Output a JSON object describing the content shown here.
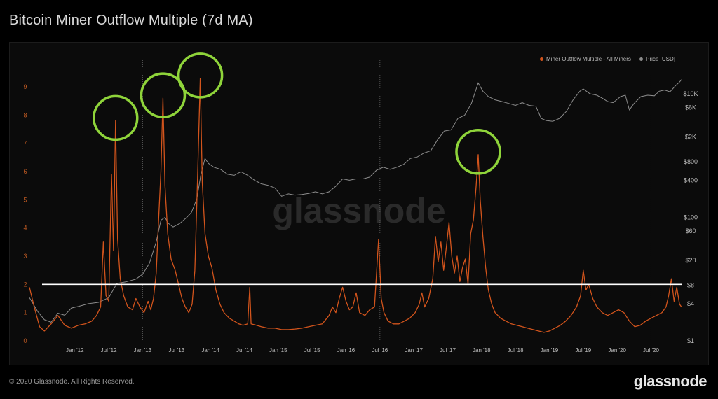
{
  "page": {
    "title": "Bitcoin Miner Outflow Multiple (7d MA)",
    "copyright": "© 2020 Glassnode. All Rights Reserved.",
    "brand": "glassnode",
    "watermark": "glassnode"
  },
  "colors": {
    "mom": "#d2541c",
    "price": "#8c8c8c",
    "threshold": "#ffffff",
    "highlight": "#8fd43a",
    "axis": "#c05a22"
  },
  "chart_data": {
    "type": "line",
    "title": "Bitcoin Miner Outflow Multiple (7d MA)",
    "legend": {
      "placement": "top-right",
      "items": [
        "Miner Outflow Multiple - All Miners",
        "Price [USD]"
      ]
    },
    "x_ticks": [
      "Jan '12",
      "Jul '12",
      "Jan '13",
      "Jul '13",
      "Jan '14",
      "Jul '14",
      "Jan '15",
      "Jul '15",
      "Jan '16",
      "Jul '16",
      "Jan '17",
      "Jul '17",
      "Jan '18",
      "Jul '18",
      "Jan '19",
      "Jul '19",
      "Jan '20",
      "Jul '20"
    ],
    "y_left": {
      "label": "Miner Outflow Multiple",
      "ticks": [
        0,
        1,
        2,
        3,
        4,
        5,
        6,
        7,
        8,
        9
      ],
      "range": [
        0,
        9.5
      ]
    },
    "y_right": {
      "label": "Price [USD]",
      "scale": "log",
      "ticks": [
        "$1",
        "$4",
        "$8",
        "$20",
        "$60",
        "$100",
        "$400",
        "$800",
        "$2K",
        "$6K",
        "$10K"
      ],
      "tick_values": [
        1,
        4,
        8,
        20,
        60,
        100,
        400,
        800,
        2000,
        6000,
        10000
      ],
      "range": [
        1,
        20000
      ]
    },
    "threshold": 2,
    "highlighted_peaks": [
      {
        "date": "2012.6",
        "value": 7.8
      },
      {
        "date": "2013.3",
        "value": 8.6
      },
      {
        "date": "2013.85",
        "value": 9.3
      },
      {
        "date": "2017.95",
        "value": 6.6
      }
    ],
    "series": [
      {
        "name": "Miner Outflow Multiple - All Miners",
        "axis": "left",
        "points": [
          [
            2011.33,
            1.9
          ],
          [
            2011.4,
            1.2
          ],
          [
            2011.48,
            0.5
          ],
          [
            2011.55,
            0.35
          ],
          [
            2011.65,
            0.6
          ],
          [
            2011.75,
            0.9
          ],
          [
            2011.85,
            0.55
          ],
          [
            2011.95,
            0.45
          ],
          [
            2012.05,
            0.55
          ],
          [
            2012.15,
            0.6
          ],
          [
            2012.25,
            0.7
          ],
          [
            2012.32,
            0.9
          ],
          [
            2012.38,
            1.2
          ],
          [
            2012.42,
            3.5
          ],
          [
            2012.46,
            1.6
          ],
          [
            2012.5,
            1.4
          ],
          [
            2012.54,
            5.9
          ],
          [
            2012.57,
            3.2
          ],
          [
            2012.6,
            7.8
          ],
          [
            2012.63,
            3.6
          ],
          [
            2012.67,
            2.2
          ],
          [
            2012.72,
            1.6
          ],
          [
            2012.78,
            1.2
          ],
          [
            2012.85,
            1.1
          ],
          [
            2012.9,
            1.5
          ],
          [
            2012.96,
            1.2
          ],
          [
            2013.02,
            1.0
          ],
          [
            2013.08,
            1.4
          ],
          [
            2013.12,
            1.1
          ],
          [
            2013.16,
            1.5
          ],
          [
            2013.2,
            2.4
          ],
          [
            2013.24,
            4.5
          ],
          [
            2013.27,
            6.0
          ],
          [
            2013.3,
            8.6
          ],
          [
            2013.33,
            5.5
          ],
          [
            2013.37,
            3.8
          ],
          [
            2013.42,
            2.9
          ],
          [
            2013.48,
            2.5
          ],
          [
            2013.53,
            2.0
          ],
          [
            2013.58,
            1.5
          ],
          [
            2013.63,
            1.2
          ],
          [
            2013.68,
            1.0
          ],
          [
            2013.73,
            1.3
          ],
          [
            2013.77,
            2.5
          ],
          [
            2013.81,
            5.8
          ],
          [
            2013.85,
            9.3
          ],
          [
            2013.88,
            5.6
          ],
          [
            2013.92,
            3.8
          ],
          [
            2013.97,
            3.0
          ],
          [
            2014.02,
            2.6
          ],
          [
            2014.08,
            1.8
          ],
          [
            2014.14,
            1.3
          ],
          [
            2014.2,
            1.0
          ],
          [
            2014.28,
            0.8
          ],
          [
            2014.35,
            0.7
          ],
          [
            2014.42,
            0.6
          ],
          [
            2014.48,
            0.55
          ],
          [
            2014.55,
            0.6
          ],
          [
            2014.58,
            1.9
          ],
          [
            2014.6,
            0.6
          ],
          [
            2014.68,
            0.55
          ],
          [
            2014.75,
            0.5
          ],
          [
            2014.85,
            0.45
          ],
          [
            2014.95,
            0.45
          ],
          [
            2015.05,
            0.4
          ],
          [
            2015.15,
            0.4
          ],
          [
            2015.25,
            0.42
          ],
          [
            2015.35,
            0.45
          ],
          [
            2015.45,
            0.5
          ],
          [
            2015.55,
            0.55
          ],
          [
            2015.65,
            0.6
          ],
          [
            2015.75,
            0.9
          ],
          [
            2015.8,
            1.2
          ],
          [
            2015.85,
            1.0
          ],
          [
            2015.9,
            1.5
          ],
          [
            2015.95,
            1.9
          ],
          [
            2016.0,
            1.4
          ],
          [
            2016.05,
            1.1
          ],
          [
            2016.1,
            1.2
          ],
          [
            2016.15,
            1.7
          ],
          [
            2016.2,
            1.0
          ],
          [
            2016.28,
            0.9
          ],
          [
            2016.35,
            1.1
          ],
          [
            2016.42,
            1.2
          ],
          [
            2016.48,
            3.6
          ],
          [
            2016.52,
            1.5
          ],
          [
            2016.56,
            1.0
          ],
          [
            2016.62,
            0.7
          ],
          [
            2016.7,
            0.6
          ],
          [
            2016.78,
            0.6
          ],
          [
            2016.86,
            0.7
          ],
          [
            2016.94,
            0.8
          ],
          [
            2017.02,
            1.0
          ],
          [
            2017.08,
            1.3
          ],
          [
            2017.12,
            1.7
          ],
          [
            2017.16,
            1.2
          ],
          [
            2017.22,
            1.5
          ],
          [
            2017.28,
            2.2
          ],
          [
            2017.32,
            3.7
          ],
          [
            2017.36,
            2.8
          ],
          [
            2017.4,
            3.5
          ],
          [
            2017.44,
            2.5
          ],
          [
            2017.48,
            3.3
          ],
          [
            2017.52,
            4.2
          ],
          [
            2017.56,
            3.0
          ],
          [
            2017.6,
            2.4
          ],
          [
            2017.64,
            3.0
          ],
          [
            2017.68,
            2.1
          ],
          [
            2017.72,
            2.6
          ],
          [
            2017.76,
            2.9
          ],
          [
            2017.8,
            2.0
          ],
          [
            2017.84,
            3.8
          ],
          [
            2017.88,
            4.3
          ],
          [
            2017.92,
            5.5
          ],
          [
            2017.95,
            6.6
          ],
          [
            2017.98,
            5.0
          ],
          [
            2018.02,
            3.7
          ],
          [
            2018.06,
            2.6
          ],
          [
            2018.1,
            1.8
          ],
          [
            2018.15,
            1.3
          ],
          [
            2018.2,
            1.0
          ],
          [
            2018.28,
            0.8
          ],
          [
            2018.36,
            0.7
          ],
          [
            2018.44,
            0.6
          ],
          [
            2018.52,
            0.55
          ],
          [
            2018.6,
            0.5
          ],
          [
            2018.68,
            0.45
          ],
          [
            2018.76,
            0.4
          ],
          [
            2018.84,
            0.35
          ],
          [
            2018.92,
            0.3
          ],
          [
            2019.0,
            0.35
          ],
          [
            2019.08,
            0.45
          ],
          [
            2019.16,
            0.55
          ],
          [
            2019.24,
            0.7
          ],
          [
            2019.32,
            0.9
          ],
          [
            2019.4,
            1.2
          ],
          [
            2019.46,
            1.6
          ],
          [
            2019.5,
            2.5
          ],
          [
            2019.54,
            1.8
          ],
          [
            2019.58,
            2.0
          ],
          [
            2019.64,
            1.5
          ],
          [
            2019.7,
            1.2
          ],
          [
            2019.78,
            1.0
          ],
          [
            2019.86,
            0.9
          ],
          [
            2019.94,
            1.0
          ],
          [
            2020.02,
            1.1
          ],
          [
            2020.1,
            1.0
          ],
          [
            2020.18,
            0.7
          ],
          [
            2020.26,
            0.5
          ],
          [
            2020.34,
            0.55
          ],
          [
            2020.42,
            0.7
          ],
          [
            2020.5,
            0.8
          ],
          [
            2020.58,
            0.9
          ],
          [
            2020.66,
            1.0
          ],
          [
            2020.72,
            1.2
          ],
          [
            2020.76,
            1.6
          ],
          [
            2020.8,
            2.2
          ],
          [
            2020.84,
            1.4
          ],
          [
            2020.88,
            1.9
          ],
          [
            2020.92,
            1.3
          ],
          [
            2020.95,
            1.2
          ]
        ]
      },
      {
        "name": "Price [USD]",
        "axis": "right",
        "points": [
          [
            2011.33,
            5
          ],
          [
            2011.45,
            3
          ],
          [
            2011.55,
            2.2
          ],
          [
            2011.65,
            2.0
          ],
          [
            2011.75,
            2.8
          ],
          [
            2011.85,
            2.6
          ],
          [
            2011.95,
            3.4
          ],
          [
            2012.05,
            3.6
          ],
          [
            2012.2,
            4.0
          ],
          [
            2012.35,
            4.2
          ],
          [
            2012.5,
            5.0
          ],
          [
            2012.62,
            8.5
          ],
          [
            2012.75,
            9.0
          ],
          [
            2012.9,
            10
          ],
          [
            2013.0,
            12
          ],
          [
            2013.1,
            18
          ],
          [
            2013.2,
            40
          ],
          [
            2013.27,
            90
          ],
          [
            2013.33,
            100
          ],
          [
            2013.38,
            80
          ],
          [
            2013.45,
            70
          ],
          [
            2013.55,
            80
          ],
          [
            2013.65,
            100
          ],
          [
            2013.72,
            120
          ],
          [
            2013.8,
            200
          ],
          [
            2013.86,
            500
          ],
          [
            2013.92,
            900
          ],
          [
            2013.97,
            750
          ],
          [
            2014.05,
            650
          ],
          [
            2014.15,
            600
          ],
          [
            2014.25,
            500
          ],
          [
            2014.35,
            480
          ],
          [
            2014.45,
            550
          ],
          [
            2014.55,
            480
          ],
          [
            2014.65,
            400
          ],
          [
            2014.75,
            350
          ],
          [
            2014.85,
            330
          ],
          [
            2014.95,
            300
          ],
          [
            2015.05,
            220
          ],
          [
            2015.15,
            240
          ],
          [
            2015.25,
            230
          ],
          [
            2015.35,
            235
          ],
          [
            2015.45,
            245
          ],
          [
            2015.55,
            260
          ],
          [
            2015.65,
            240
          ],
          [
            2015.75,
            260
          ],
          [
            2015.85,
            320
          ],
          [
            2015.95,
            420
          ],
          [
            2016.05,
            400
          ],
          [
            2016.15,
            420
          ],
          [
            2016.25,
            420
          ],
          [
            2016.35,
            450
          ],
          [
            2016.45,
            580
          ],
          [
            2016.55,
            650
          ],
          [
            2016.65,
            600
          ],
          [
            2016.75,
            650
          ],
          [
            2016.85,
            720
          ],
          [
            2016.95,
            900
          ],
          [
            2017.05,
            950
          ],
          [
            2017.15,
            1100
          ],
          [
            2017.25,
            1200
          ],
          [
            2017.35,
            1800
          ],
          [
            2017.45,
            2500
          ],
          [
            2017.55,
            2600
          ],
          [
            2017.65,
            4000
          ],
          [
            2017.75,
            4500
          ],
          [
            2017.85,
            7000
          ],
          [
            2017.95,
            15000
          ],
          [
            2018.02,
            11000
          ],
          [
            2018.1,
            9000
          ],
          [
            2018.2,
            8000
          ],
          [
            2018.3,
            7500
          ],
          [
            2018.4,
            7000
          ],
          [
            2018.5,
            6500
          ],
          [
            2018.6,
            7200
          ],
          [
            2018.7,
            6500
          ],
          [
            2018.8,
            6300
          ],
          [
            2018.88,
            4000
          ],
          [
            2018.95,
            3700
          ],
          [
            2019.05,
            3600
          ],
          [
            2019.15,
            4000
          ],
          [
            2019.25,
            5200
          ],
          [
            2019.35,
            8000
          ],
          [
            2019.45,
            11000
          ],
          [
            2019.5,
            12000
          ],
          [
            2019.6,
            10000
          ],
          [
            2019.7,
            9500
          ],
          [
            2019.78,
            8500
          ],
          [
            2019.86,
            7500
          ],
          [
            2019.94,
            7200
          ],
          [
            2020.05,
            9000
          ],
          [
            2020.12,
            9500
          ],
          [
            2020.18,
            5500
          ],
          [
            2020.25,
            7000
          ],
          [
            2020.35,
            9000
          ],
          [
            2020.45,
            9500
          ],
          [
            2020.55,
            9300
          ],
          [
            2020.62,
            11000
          ],
          [
            2020.7,
            11500
          ],
          [
            2020.78,
            10800
          ],
          [
            2020.86,
            13500
          ],
          [
            2020.92,
            15500
          ],
          [
            2020.95,
            17000
          ]
        ]
      }
    ]
  }
}
